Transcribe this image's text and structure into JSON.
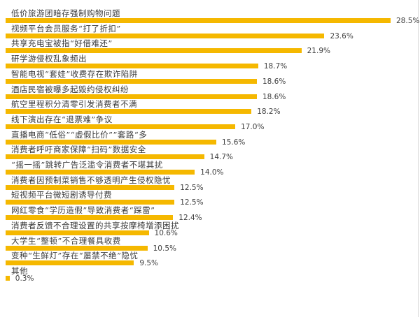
{
  "chart_data": {
    "type": "bar",
    "orientation": "horizontal",
    "title": "",
    "xlabel": "",
    "ylabel": "",
    "xlim": [
      0,
      28.5
    ],
    "grid": false,
    "legend": null,
    "bar_color": "#F5B800",
    "value_suffix": "%",
    "categories": [
      "低价旅游团暗存强制购物问题",
      "视频平台会员服务“打了折扣”",
      "共享充电宝被指“好借难还”",
      "研学游侵权乱象频出",
      "智能电视“套娃”收费存在欺诈陷阱",
      "酒店民宿被曝多起毁约侵权纠纷",
      "航空里程积分清零引发消费者不满",
      "线下演出存在“退票难”争议",
      "直播电商“低俗”“虚假比价””套路“多",
      "消费者呼吁商家保障“扫码”数据安全",
      "“摇一摇”跳转广告泛滥令消费者不堪其扰",
      "消费者因预制菜销售不够透明产生侵权隐忧",
      "短视频平台微短剧诱导付费",
      "网红零食“学历造假”导致消费者“踩雷”",
      "消费者反馈不合理设置的共享按摩椅增添困扰",
      "大学生“整顿”不合理餐具收费",
      "变种“生鲜灯”存在“屡禁不绝”隐忧",
      "其他"
    ],
    "values": [
      28.5,
      23.6,
      21.9,
      18.7,
      18.6,
      18.6,
      18.2,
      17.0,
      15.6,
      14.7,
      14.0,
      12.5,
      12.5,
      12.4,
      10.6,
      10.5,
      9.5,
      0.3
    ],
    "value_labels": [
      "28.5%",
      "23.6%",
      "21.9%",
      "18.7%",
      "18.6%",
      "18.6%",
      "18.2%",
      "17.0%",
      "15.6%",
      "14.7%",
      "14.0%",
      "12.5%",
      "12.5%",
      "12.4%",
      "10.6%",
      "10.5%",
      "9.5%",
      "0.3%"
    ]
  }
}
